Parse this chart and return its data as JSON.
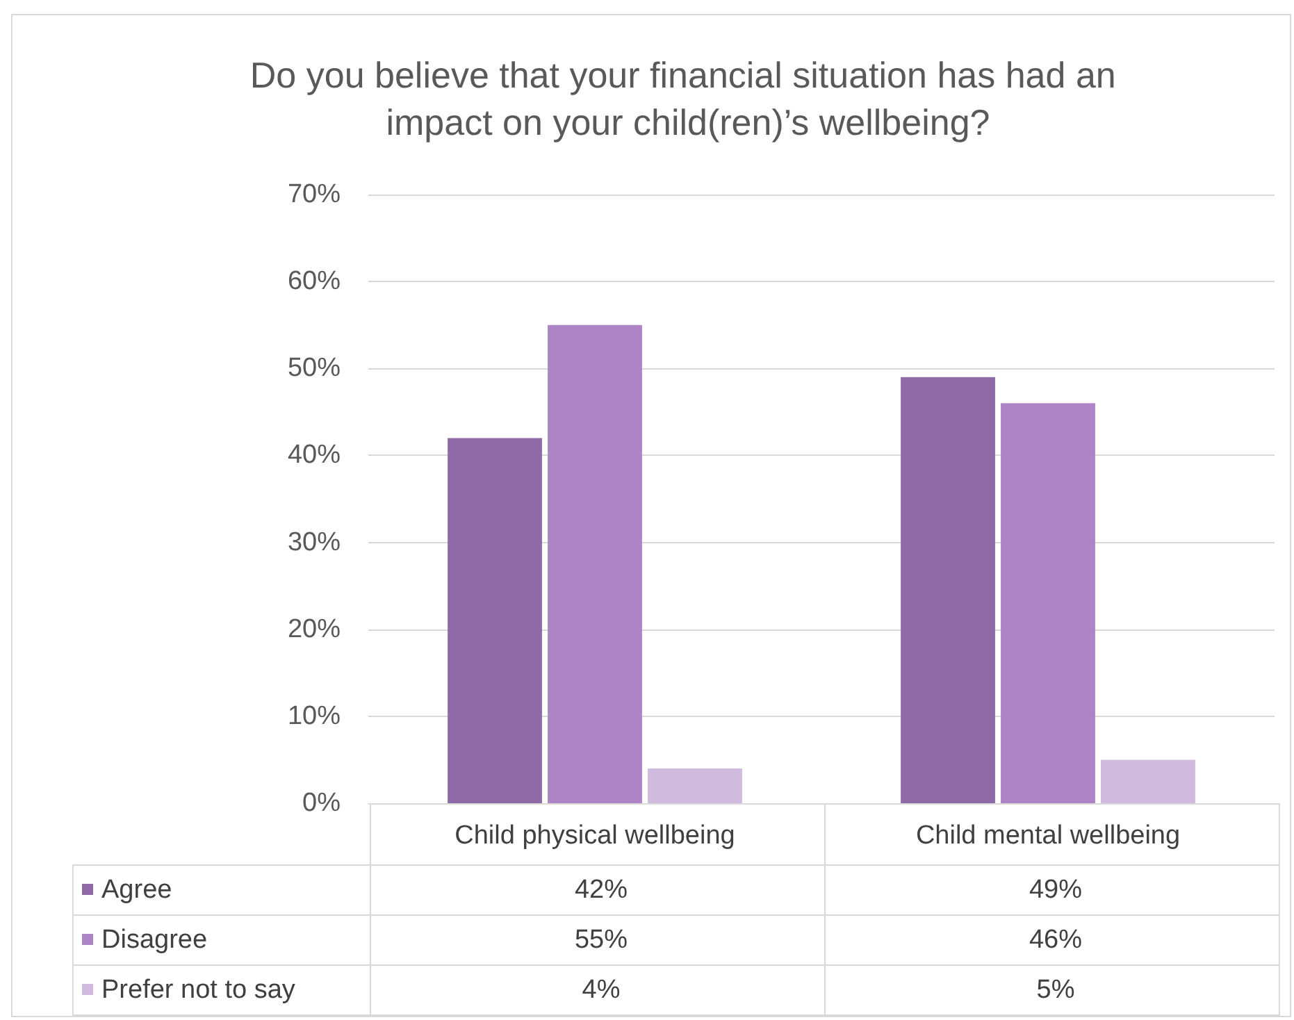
{
  "chart_data": {
    "type": "bar",
    "title": "Do you believe that your financial situation has had an impact on your child(ren)’s wellbeing?",
    "categories": [
      "Child physical wellbeing",
      "Child mental wellbeing"
    ],
    "series": [
      {
        "name": "Agree",
        "color": "#8e6aa6",
        "values": [
          42,
          49
        ],
        "value_labels": [
          "42%",
          "49%"
        ]
      },
      {
        "name": "Disagree",
        "color": "#ad85c6",
        "values": [
          55,
          46
        ],
        "value_labels": [
          "55%",
          "46%"
        ]
      },
      {
        "name": "Prefer not to say",
        "color": "#d0bbdf",
        "values": [
          4,
          5
        ],
        "value_labels": [
          "4%",
          "5%"
        ]
      }
    ],
    "ylim": [
      0,
      70
    ],
    "yticks": [
      {
        "value": 0,
        "label": "0%"
      },
      {
        "value": 10,
        "label": "10%"
      },
      {
        "value": 20,
        "label": "20%"
      },
      {
        "value": 30,
        "label": "30%"
      },
      {
        "value": 40,
        "label": "40%"
      },
      {
        "value": 50,
        "label": "50%"
      },
      {
        "value": 60,
        "label": "60%"
      },
      {
        "value": 70,
        "label": "70%"
      }
    ],
    "grid": "y",
    "legend": "bottom left"
  }
}
